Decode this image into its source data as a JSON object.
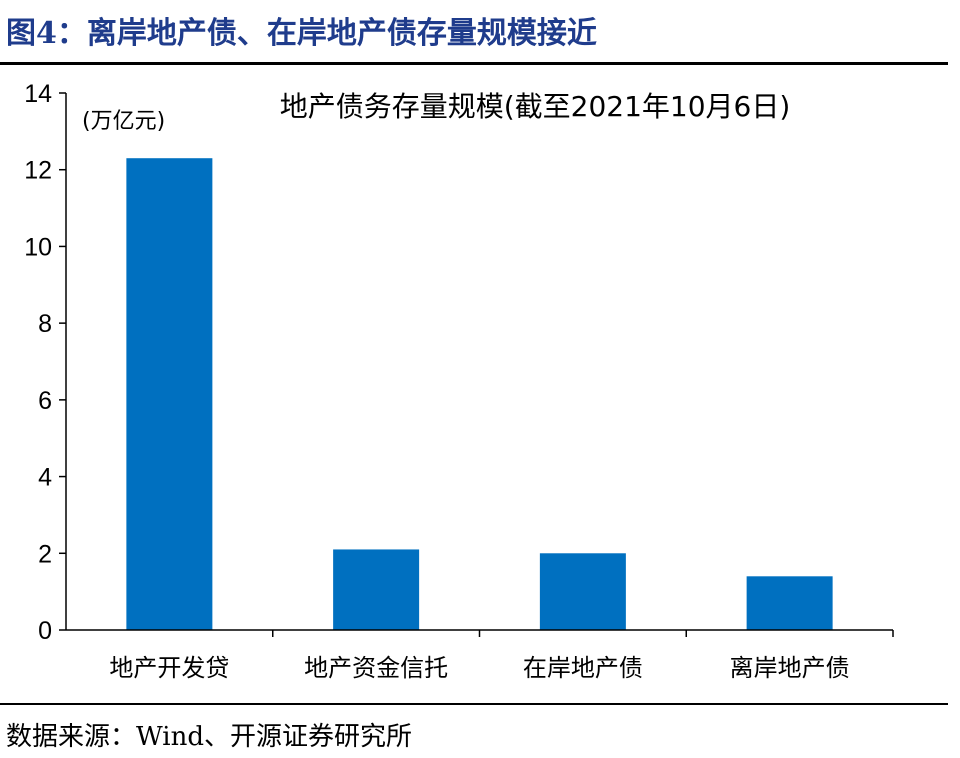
{
  "figure": {
    "title": "图4：离岸地产债、在岸地产债存量规模接近",
    "source": "数据来源：Wind、开源证券研究所"
  },
  "chart_data": {
    "type": "bar",
    "title": "地产债务存量规模(截至2021年10月6日)",
    "unit": "(万亿元)",
    "categories": [
      "地产开发贷",
      "地产资金信托",
      "在岸地产债",
      "离岸地产债"
    ],
    "values": [
      12.3,
      2.1,
      2.0,
      1.4
    ],
    "ylim": [
      0,
      14
    ],
    "yticks": [
      0,
      2,
      4,
      6,
      8,
      10,
      12,
      14
    ],
    "grid": false,
    "legend": "none",
    "colors": {
      "bar": "#0070c0",
      "axis": "#000000",
      "title": "#1f3c8c"
    }
  }
}
